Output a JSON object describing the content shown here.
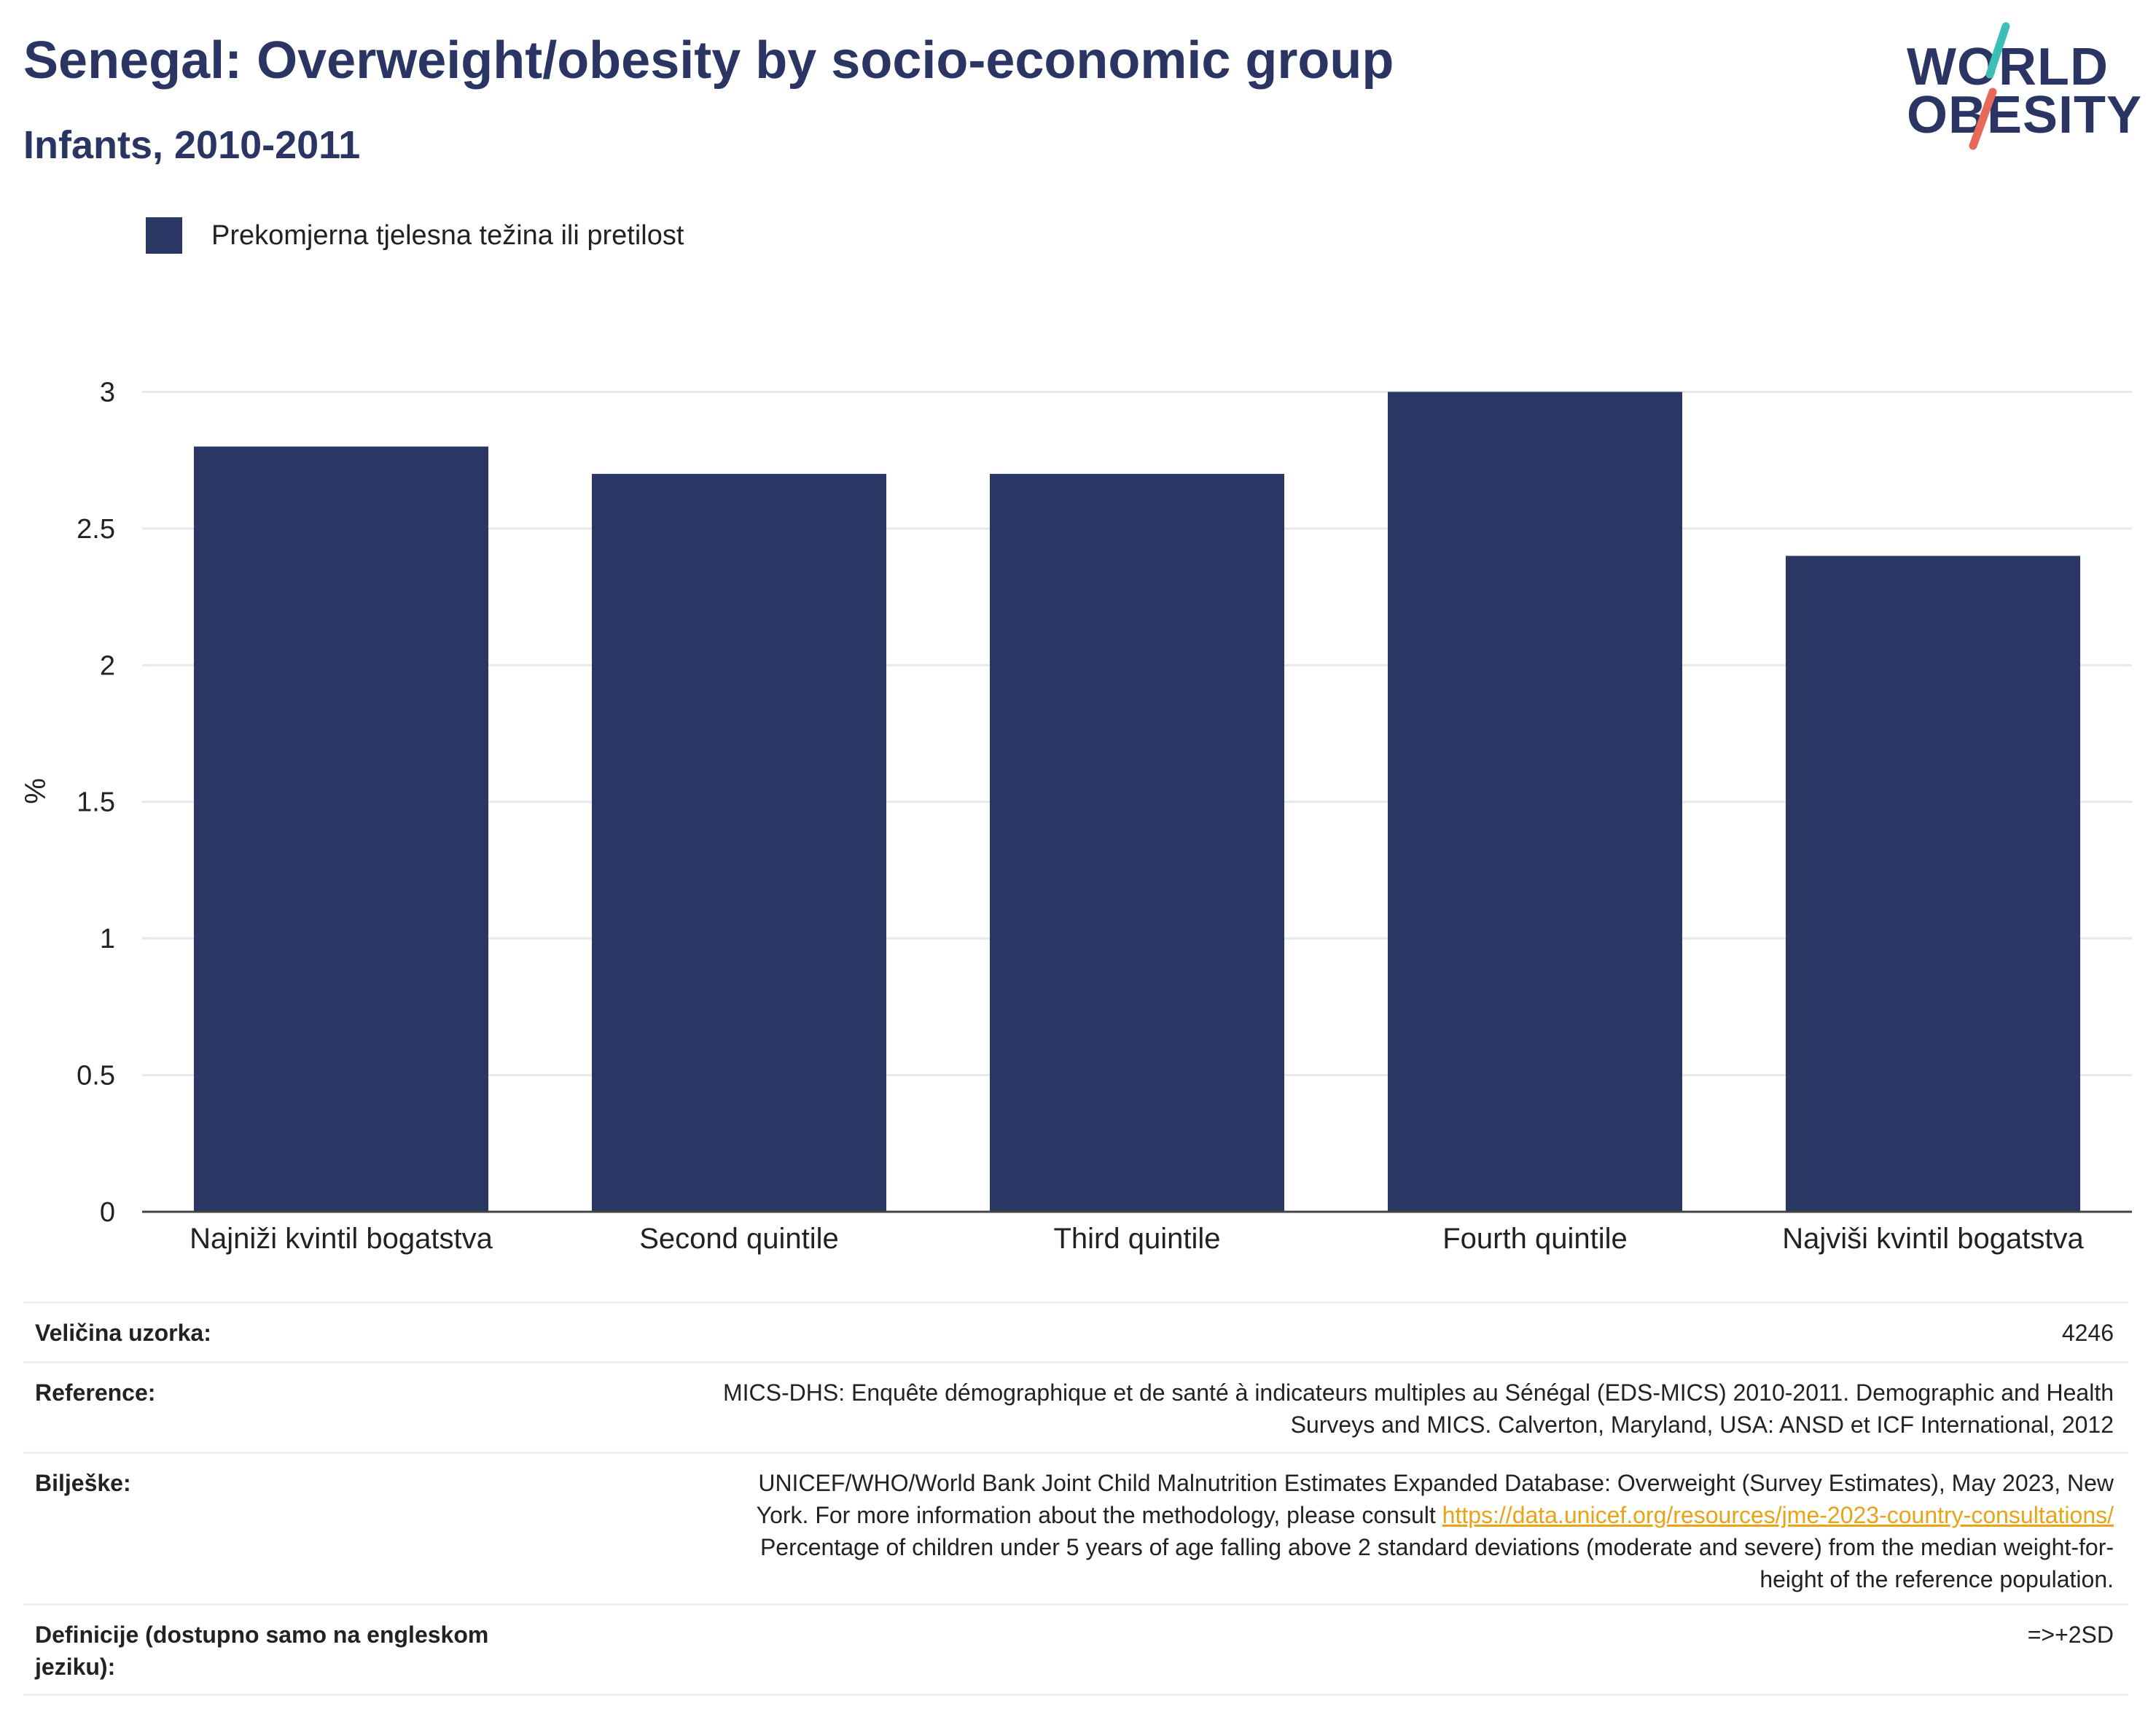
{
  "header": {
    "title": "Senegal: Overweight/obesity by socio-economic group",
    "subtitle": "Infants, 2010-2011"
  },
  "logo": {
    "line1": "WORLD",
    "line2": "OBESITY",
    "accent_colors": [
      "#3dbfb8",
      "#e8685a"
    ]
  },
  "legend": {
    "label": "Prekomjerna tjelesna težina ili pretilost",
    "color": "#2a3663"
  },
  "chart_data": {
    "type": "bar",
    "categories": [
      "Najniži kvintil bogatstva",
      "Second quintile",
      "Third quintile",
      "Fourth quintile",
      "Najviši kvintil bogatstva"
    ],
    "series": [
      {
        "name": "Prekomjerna tjelesna težina ili pretilost",
        "values": [
          2.8,
          2.7,
          2.7,
          3.0,
          2.4
        ],
        "color": "#2a3663"
      }
    ],
    "ylabel": "%",
    "ylim": [
      0,
      3.1
    ],
    "yticks": [
      "0",
      "0.5",
      "1",
      "1.5",
      "2",
      "2.5",
      "3"
    ],
    "grid": true
  },
  "info_table": {
    "sample_label": "Veličina uzorka:",
    "sample_value": "4246",
    "reference_label": "Reference:",
    "reference_line1": "MICS-DHS: Enquête démographique et de santé à indicateurs multiples au Sénégal (EDS-MICS) 2010-2011. Demographic and Health",
    "reference_line2": "Surveys and MICS. Calverton, Maryland, USA: ANSD et ICF International, 2012",
    "notes_label": "Bilješke:",
    "notes_line1": "UNICEF/WHO/World Bank Joint Child Malnutrition Estimates Expanded Database: Overweight (Survey Estimates), May 2023, New",
    "notes_line2_text": "York. For more information about the methodology, please consult",
    "notes_link": "https://data.unicef.org/resources/jme-2023-country-consultations/",
    "notes_line3": "Percentage of children under 5 years of age falling above 2 standard deviations (moderate and severe) from the median weight-for-",
    "notes_line4": "height of the reference population.",
    "definitions_label_line1": "Definicije (dostupno samo na engleskom",
    "definitions_label_line2": "jeziku):",
    "definitions_value": "=>+2SD"
  }
}
